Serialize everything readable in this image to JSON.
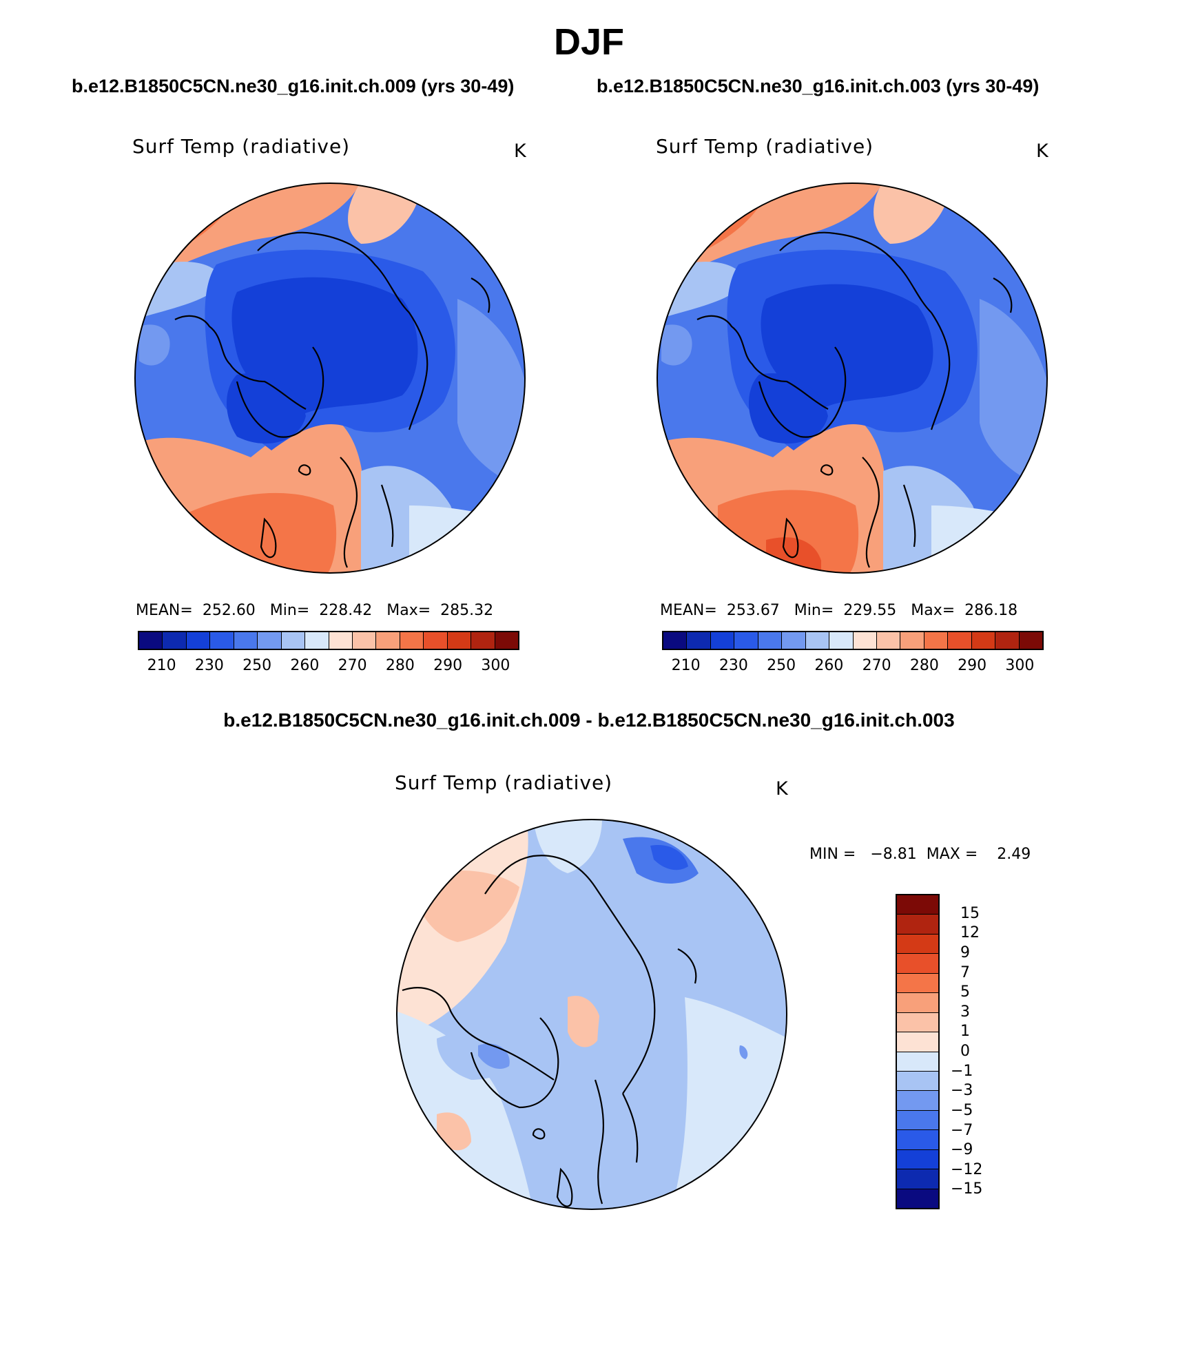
{
  "season_title": "DJF",
  "case1_title": "b.e12.B1850C5CN.ne30_g16.init.ch.009 (yrs 30-49)",
  "case2_title": "b.e12.B1850C5CN.ne30_g16.init.ch.003 (yrs 30-49)",
  "diff_title": "b.e12.B1850C5CN.ne30_g16.init.ch.009 - b.e12.B1850C5CN.ne30_g16.init.ch.003",
  "panels": [
    {
      "variable": "Surf Temp (radiative)",
      "units": "K",
      "mean_label": "MEAN=",
      "mean": "252.60",
      "min_label": "Min=",
      "min": "228.42",
      "max_label": "Max=",
      "max": "285.32"
    },
    {
      "variable": "Surf Temp (radiative)",
      "units": "K",
      "mean_label": "MEAN=",
      "mean": "253.67",
      "min_label": "Min=",
      "min": "229.55",
      "max_label": "Max=",
      "max": "286.18"
    }
  ],
  "diff_panel": {
    "variable": "Surf Temp (radiative)",
    "units": "K",
    "min_label": "MIN =",
    "min": "−8.81",
    "max_label": "MAX =",
    "max": "2.49"
  },
  "colorbar_abs": {
    "colors": [
      "#0a0a80",
      "#0d2ab0",
      "#1440d8",
      "#2a5ae8",
      "#4a78ec",
      "#7399f0",
      "#a8c4f4",
      "#d8e8fa",
      "#fde2d4",
      "#fbc2a8",
      "#f8a07a",
      "#f47548",
      "#e8502a",
      "#d43a16",
      "#b02410",
      "#7c0a06"
    ],
    "tick_labels": [
      "210",
      "230",
      "250",
      "260",
      "270",
      "280",
      "290",
      "300"
    ]
  },
  "colorbar_diff": {
    "colors": [
      "#7c0a06",
      "#b02410",
      "#d43a16",
      "#e8502a",
      "#f47548",
      "#f8a07a",
      "#fbc2a8",
      "#fde2d4",
      "#d8e8fa",
      "#a8c4f4",
      "#7399f0",
      "#4a78ec",
      "#2a5ae8",
      "#1440d8",
      "#0d2ab0",
      "#0a0a80"
    ],
    "tick_labels": [
      "15",
      "12",
      "9",
      "7",
      "5",
      "3",
      "1",
      "0",
      "−1",
      "−3",
      "−5",
      "−7",
      "−9",
      "−12",
      "−15"
    ]
  },
  "map_colors": {
    "deep_blue": "#1440d8",
    "blue": "#2a5ae8",
    "mid_blue": "#4a78ec",
    "light_blue": "#7399f0",
    "pale_blue": "#a8c4f4",
    "paler_blue": "#d8e8fa",
    "pale_red": "#fde2d4",
    "light_red": "#fbc2a8",
    "red": "#f8a07a",
    "dark_red": "#f47548",
    "deeper_red": "#e8502a"
  }
}
